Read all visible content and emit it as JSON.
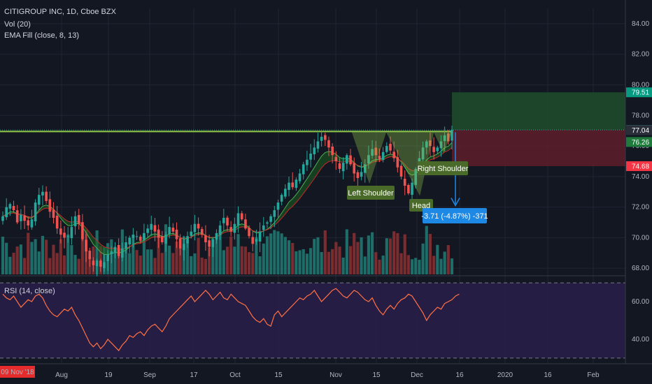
{
  "header": {
    "title": "CITIGROUP INC, 1D, Cboe BZX",
    "indicator_vol": "Vol (20)",
    "indicator_ema": "EMA Fill (close, 8, 13)"
  },
  "rsi_panel": {
    "label": "RSI (14, close)"
  },
  "price_axis": {
    "ticks": [
      "84.00",
      "82.00",
      "80.00",
      "78.00",
      "76.00",
      "74.00",
      "72.00",
      "70.00",
      "68.00"
    ],
    "tags": [
      {
        "text": "79.51",
        "color": "#089981"
      },
      {
        "text": "77.05",
        "color": "#26a69a"
      },
      {
        "text": "77.04",
        "color": "#2a2e39"
      },
      {
        "text": "76.26",
        "color": "#1f7a3c"
      },
      {
        "text": "74.68",
        "color": "#f23645"
      }
    ]
  },
  "rsi_axis": {
    "ticks": [
      "60.00",
      "40.00"
    ]
  },
  "time_axis": {
    "cursor_label": "09 Nov '18",
    "ticks": [
      "Aug",
      "19",
      "Sep",
      "17",
      "Oct",
      "15",
      "Nov",
      "15",
      "Dec",
      "16",
      "2020",
      "16",
      "Feb"
    ]
  },
  "annotations": {
    "left_shoulder": "Left Shoulder",
    "head": "Head",
    "right_shoulder": "Right Shoulder",
    "measure": "-3.71 (-4.87%) -371"
  },
  "colors": {
    "up": "#26a69a",
    "down": "#ef5350",
    "ema_fill": "#1b5e20",
    "neckline": "#8bc34a",
    "rsi_line": "#ff7043",
    "rsi_band": "#2a1e4a",
    "target_zone": "#1e4d2b",
    "stop_zone": "#5e1f2a",
    "measure_box": "#1e88e5"
  },
  "chart_data": {
    "type": "candlestick",
    "symbol": "CITIGROUP INC",
    "interval": "1D",
    "exchange": "Cboe BZX",
    "y_range": [
      67.6,
      85.0
    ],
    "rsi_range": [
      27,
      73
    ],
    "rsi_levels": [
      70,
      30
    ],
    "closes": [
      71.4,
      72.0,
      72.2,
      71.8,
      71.0,
      71.5,
      71.1,
      70.8,
      71.2,
      72.3,
      72.8,
      73.0,
      72.4,
      71.7,
      71.3,
      70.6,
      70.2,
      70.0,
      70.1,
      70.7,
      71.4,
      70.9,
      69.9,
      69.1,
      68.6,
      68.2,
      68.5,
      68.1,
      68.4,
      68.9,
      69.1,
      69.4,
      68.8,
      69.3,
      69.7,
      70.0,
      70.2,
      70.1,
      69.8,
      70.3,
      70.6,
      70.9,
      70.4,
      70.0,
      69.7,
      70.2,
      70.7,
      70.4,
      69.9,
      69.3,
      69.6,
      70.1,
      70.4,
      70.9,
      70.6,
      70.2,
      69.7,
      69.4,
      69.9,
      70.3,
      70.8,
      71.3,
      70.8,
      70.4,
      70.9,
      71.6,
      71.2,
      70.6,
      70.1,
      69.6,
      69.9,
      70.4,
      70.8,
      71.0,
      71.4,
      71.8,
      72.3,
      72.8,
      73.2,
      73.6,
      73.3,
      73.8,
      74.2,
      74.8,
      75.1,
      75.5,
      75.9,
      76.3,
      76.6,
      76.4,
      75.9,
      75.4,
      75.0,
      74.5,
      74.9,
      75.4,
      74.8,
      74.2,
      73.9,
      74.3,
      74.8,
      75.4,
      75.8,
      75.4,
      75.1,
      75.6,
      76.0,
      75.7,
      75.2,
      74.6,
      74.0,
      73.4,
      72.9,
      73.6,
      74.5,
      75.2,
      75.9,
      76.3,
      76.0,
      75.6,
      75.9,
      76.3,
      76.7,
      76.3,
      77.05
    ],
    "rsi_values": [
      64,
      62,
      61,
      63,
      60,
      57,
      59,
      61,
      60,
      63,
      64,
      62,
      58,
      55,
      53,
      52,
      54,
      56,
      55,
      57,
      53,
      50,
      46,
      42,
      38,
      36,
      38,
      35,
      37,
      40,
      38,
      36,
      34,
      37,
      39,
      42,
      41,
      43,
      44,
      42,
      45,
      47,
      48,
      46,
      44,
      47,
      51,
      53,
      55,
      57,
      59,
      61,
      63,
      60,
      62,
      64,
      66,
      64,
      61,
      63,
      65,
      62,
      61,
      64,
      62,
      60,
      59,
      58,
      55,
      52,
      50,
      49,
      51,
      48,
      47,
      53,
      55,
      52,
      54,
      56,
      58,
      60,
      62,
      61,
      63,
      64,
      66,
      63,
      60,
      62,
      64,
      66,
      67,
      65,
      63,
      62,
      64,
      66,
      65,
      63,
      61,
      60,
      62,
      58,
      55,
      53,
      56,
      58,
      56,
      59,
      61,
      62,
      64,
      63,
      60,
      57,
      54,
      50,
      53,
      55,
      57,
      56,
      59,
      60,
      61,
      63,
      64
    ],
    "pattern": "Inverse Head and Shoulders",
    "neckline": 77.04,
    "target": 79.51,
    "entry": 77.05,
    "stop": 74.68,
    "measured_move": {
      "change": -3.71,
      "percent": -4.87,
      "ticks": -371
    }
  }
}
